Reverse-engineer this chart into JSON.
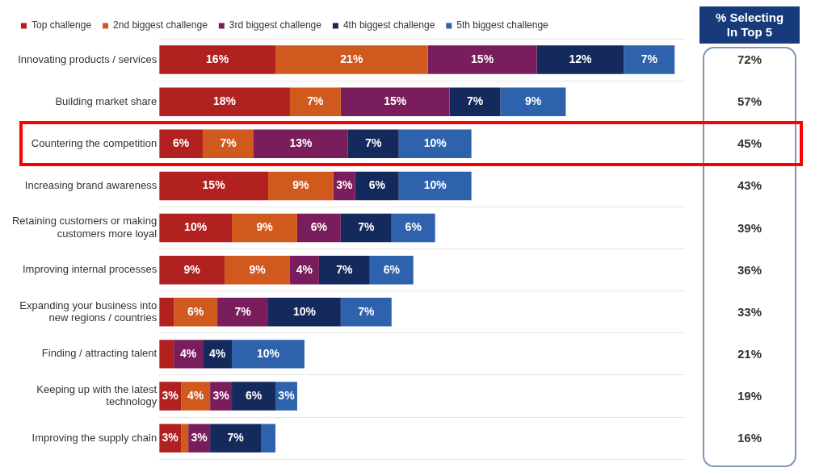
{
  "chart_data": [
    {
      "type": "bar",
      "orientation": "horizontal",
      "stacked": true,
      "categories": [
        "Innovating products / services",
        "Building market share",
        "Countering the competition",
        "Increasing brand awareness",
        "Retaining customers or making customers more loyal",
        "Improving internal processes",
        "Expanding your business into new regions / countries",
        "Finding / attracting talent",
        "Keeping up with the latest technology",
        "Improving the supply chain"
      ],
      "series": [
        {
          "name": "Top challenge",
          "color": "#b0211f",
          "values": [
            16,
            18,
            6,
            15,
            10,
            9,
            2,
            2,
            3,
            3
          ],
          "value_labels": [
            "16%",
            "18%",
            "6%",
            "15%",
            "10%",
            "9%",
            null,
            null,
            "3%",
            "3%"
          ]
        },
        {
          "name": "2nd biggest challenge",
          "color": "#d05a1e",
          "values": [
            21,
            7,
            7,
            9,
            9,
            9,
            6,
            null,
            4,
            1
          ],
          "value_labels": [
            "21%",
            "7%",
            "7%",
            "9%",
            "9%",
            "9%",
            "6%",
            null,
            "4%",
            null
          ]
        },
        {
          "name": "3rd biggest challenge",
          "color": "#7a1d5c",
          "values": [
            15,
            15,
            13,
            3,
            6,
            4,
            7,
            4,
            3,
            3
          ],
          "value_labels": [
            "15%",
            "15%",
            "13%",
            "3%",
            "6%",
            "4%",
            "7%",
            "4%",
            "3%",
            "3%"
          ]
        },
        {
          "name": "4th biggest challenge",
          "color": "#152a5c",
          "values": [
            12,
            7,
            7,
            6,
            7,
            7,
            10,
            4,
            6,
            7
          ],
          "value_labels": [
            "12%",
            "7%",
            "7%",
            "6%",
            "7%",
            "7%",
            "10%",
            "4%",
            "6%",
            "7%"
          ]
        },
        {
          "name": "5th biggest challenge",
          "color": "#2e62ad",
          "values": [
            7,
            9,
            10,
            10,
            6,
            6,
            7,
            10,
            3,
            2
          ],
          "value_labels": [
            "7%",
            "9%",
            "10%",
            "10%",
            "6%",
            "6%",
            "7%",
            "10%",
            "3%",
            null
          ]
        }
      ],
      "legend": "top",
      "grid": "y",
      "tick_labels": "y"
    },
    {
      "type": "other",
      "title": "% Selecting In Top 5",
      "annotations": [
        "72%",
        "57%",
        "45%",
        "43%",
        "39%",
        "36%",
        "33%",
        "21%",
        "19%",
        "16%"
      ]
    }
  ]
}
